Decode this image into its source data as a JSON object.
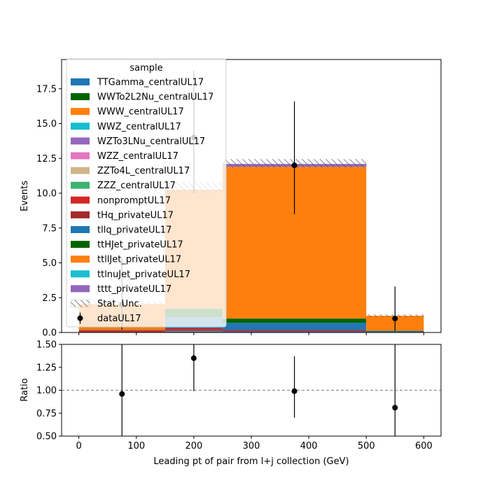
{
  "chart_data": [
    {
      "type": "bar",
      "panel": "main",
      "stacked": true,
      "xlabel": "",
      "ylabel": "Events",
      "xlim": [
        -30,
        630
      ],
      "ylim": [
        0,
        19.6
      ],
      "x_ticks": [
        0,
        100,
        200,
        300,
        400,
        500,
        600
      ],
      "y_ticks": [
        0.0,
        2.5,
        5.0,
        7.5,
        10.0,
        12.5,
        15.0,
        17.5
      ],
      "y_tick_labels": [
        "0.0",
        "2.5",
        "5.0",
        "7.5",
        "10.0",
        "12.5",
        "15.0",
        "17.5"
      ],
      "bin_edges": [
        0,
        150,
        250,
        500,
        600
      ],
      "legend": {
        "title": "sample",
        "placement": "top-left"
      },
      "series": [
        {
          "name": "TTGamma_centralUL17",
          "color": "#1f77b4",
          "values": [
            0,
            0.05,
            0.1,
            0
          ]
        },
        {
          "name": "WWTo2L2Nu_centralUL17",
          "color": "#006400",
          "values": [
            0,
            0,
            0,
            0
          ]
        },
        {
          "name": "WWW_centralUL17",
          "color": "#ff7f0e",
          "values": [
            0,
            0,
            0,
            0
          ]
        },
        {
          "name": "WWZ_centralUL17",
          "color": "#17becf",
          "values": [
            0,
            0.05,
            0,
            0
          ]
        },
        {
          "name": "WZTo3LNu_centralUL17",
          "color": "#9467bd",
          "values": [
            0,
            0,
            0,
            0
          ]
        },
        {
          "name": "WZZ_centralUL17",
          "color": "#e377c2",
          "values": [
            0,
            0,
            0,
            0
          ]
        },
        {
          "name": "ZZTo4L_centralUL17",
          "color": "#d2b48c",
          "values": [
            0,
            0,
            0,
            0
          ]
        },
        {
          "name": "ZZZ_centralUL17",
          "color": "#3cb371",
          "values": [
            0,
            0,
            0,
            0
          ]
        },
        {
          "name": "nonpromptUL17",
          "color": "#d62728",
          "values": [
            0.15,
            0.15,
            0.1,
            0
          ]
        },
        {
          "name": "tHq_privateUL17",
          "color": "#a52a2a",
          "values": [
            0,
            0.05,
            0,
            0
          ]
        },
        {
          "name": "tllq_privateUL17",
          "color": "#1f77b4",
          "values": [
            0.02,
            0.8,
            0.5,
            0.1
          ]
        },
        {
          "name": "ttHJet_privateUL17",
          "color": "#006400",
          "values": [
            0.02,
            0.6,
            0.3,
            0.02
          ]
        },
        {
          "name": "ttllJet_privateUL17",
          "color": "#ff7f0e",
          "values": [
            1.85,
            8.55,
            10.9,
            1.08
          ]
        },
        {
          "name": "ttlnuJet_privateUL17",
          "color": "#17becf",
          "values": [
            0,
            0,
            0,
            0
          ]
        },
        {
          "name": "tttt_privateUL17",
          "color": "#9467bd",
          "values": [
            0,
            0,
            0.2,
            0
          ]
        }
      ],
      "stat_unc": {
        "name": "Stat. Unc.",
        "low": [
          1.95,
          10.0,
          11.85,
          1.1
        ],
        "high": [
          2.25,
          10.8,
          12.45,
          1.3
        ]
      },
      "data": {
        "name": "dataUL17",
        "x": [
          75,
          200,
          375,
          550
        ],
        "y": [
          2,
          14,
          12,
          1
        ],
        "yerr_low": [
          1.8,
          4.0,
          3.5,
          0.9
        ],
        "yerr_high": [
          3.3,
          4.8,
          4.6,
          2.3
        ]
      }
    },
    {
      "type": "scatter",
      "panel": "ratio",
      "xlabel": "Leading pt of pair from l+j collection (GeV)",
      "ylabel": "Ratio",
      "xlim": [
        -30,
        630
      ],
      "ylim": [
        0.5,
        1.5
      ],
      "x_ticks": [
        0,
        100,
        200,
        300,
        400,
        500,
        600
      ],
      "y_ticks": [
        0.5,
        0.75,
        1.0,
        1.25,
        1.5
      ],
      "y_tick_labels": [
        "0.50",
        "0.75",
        "1.00",
        "1.25",
        "1.50"
      ],
      "reference_line": 1.0,
      "x": [
        75,
        200,
        375,
        550
      ],
      "y": [
        0.96,
        1.35,
        0.99,
        0.81
      ],
      "yerr_low": [
        0.9,
        0.36,
        0.29,
        0.81
      ],
      "yerr_high": [
        1.6,
        0.5,
        0.38,
        2.3
      ]
    }
  ]
}
